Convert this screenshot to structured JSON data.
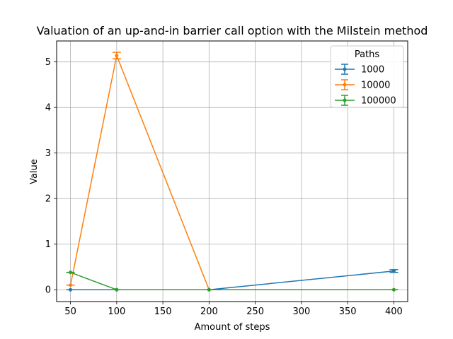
{
  "chart_data": {
    "type": "line",
    "title": "Valuation of an up-and-in barrier call option with the Milstein method",
    "xlabel": "Amount of steps",
    "ylabel": "Value",
    "xlim": [
      35,
      415
    ],
    "ylim": [
      -0.26,
      5.46
    ],
    "xticks": [
      50,
      100,
      150,
      200,
      250,
      300,
      350,
      400
    ],
    "yticks": [
      0,
      1,
      2,
      3,
      4,
      5
    ],
    "grid": true,
    "legend": {
      "title": "Paths",
      "placement": "top-right"
    },
    "series": [
      {
        "name": "1000",
        "color": "#1f77b4",
        "x": [
          50,
          100,
          200,
          400
        ],
        "y": [
          0.0,
          0.0,
          0.0,
          0.41
        ],
        "yerr": [
          0.0,
          0.0,
          0.0,
          0.03
        ]
      },
      {
        "name": "10000",
        "color": "#ff7f0e",
        "x": [
          50,
          100,
          200,
          400
        ],
        "y": [
          0.1,
          5.14,
          0.0,
          0.0
        ],
        "yerr": [
          0.0,
          0.07,
          0.0,
          0.0
        ]
      },
      {
        "name": "100000",
        "color": "#2ca02c",
        "x": [
          50,
          100,
          200,
          400
        ],
        "y": [
          0.38,
          0.0,
          0.0,
          0.0
        ],
        "yerr": [
          0.0,
          0.0,
          0.0,
          0.0
        ]
      }
    ]
  }
}
